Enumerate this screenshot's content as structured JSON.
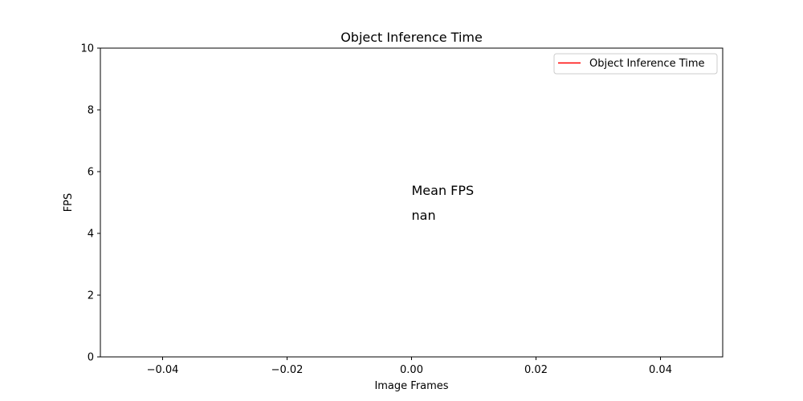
{
  "chart_data": {
    "type": "line",
    "title": "Object Inference Time",
    "xlabel": "Image Frames",
    "ylabel": "FPS",
    "xlim": [
      -0.05,
      0.05
    ],
    "ylim": [
      0,
      10
    ],
    "xticks": [
      -0.04,
      -0.02,
      0.0,
      0.02,
      0.04
    ],
    "xtick_labels": [
      "−0.04",
      "−0.02",
      "0.00",
      "0.02",
      "0.04"
    ],
    "yticks": [
      0,
      2,
      4,
      6,
      8,
      10
    ],
    "ytick_labels": [
      "0",
      "2",
      "4",
      "6",
      "8",
      "10"
    ],
    "grid": false,
    "legend_position": "top-right",
    "series": [
      {
        "name": "Object Inference Time",
        "color": "#ff0000",
        "x": [],
        "y": []
      }
    ],
    "annotations": [
      {
        "text": "Mean FPS",
        "x": 0.0,
        "y": 5.4
      },
      {
        "text": "nan",
        "x": 0.0,
        "y": 4.6
      }
    ]
  }
}
